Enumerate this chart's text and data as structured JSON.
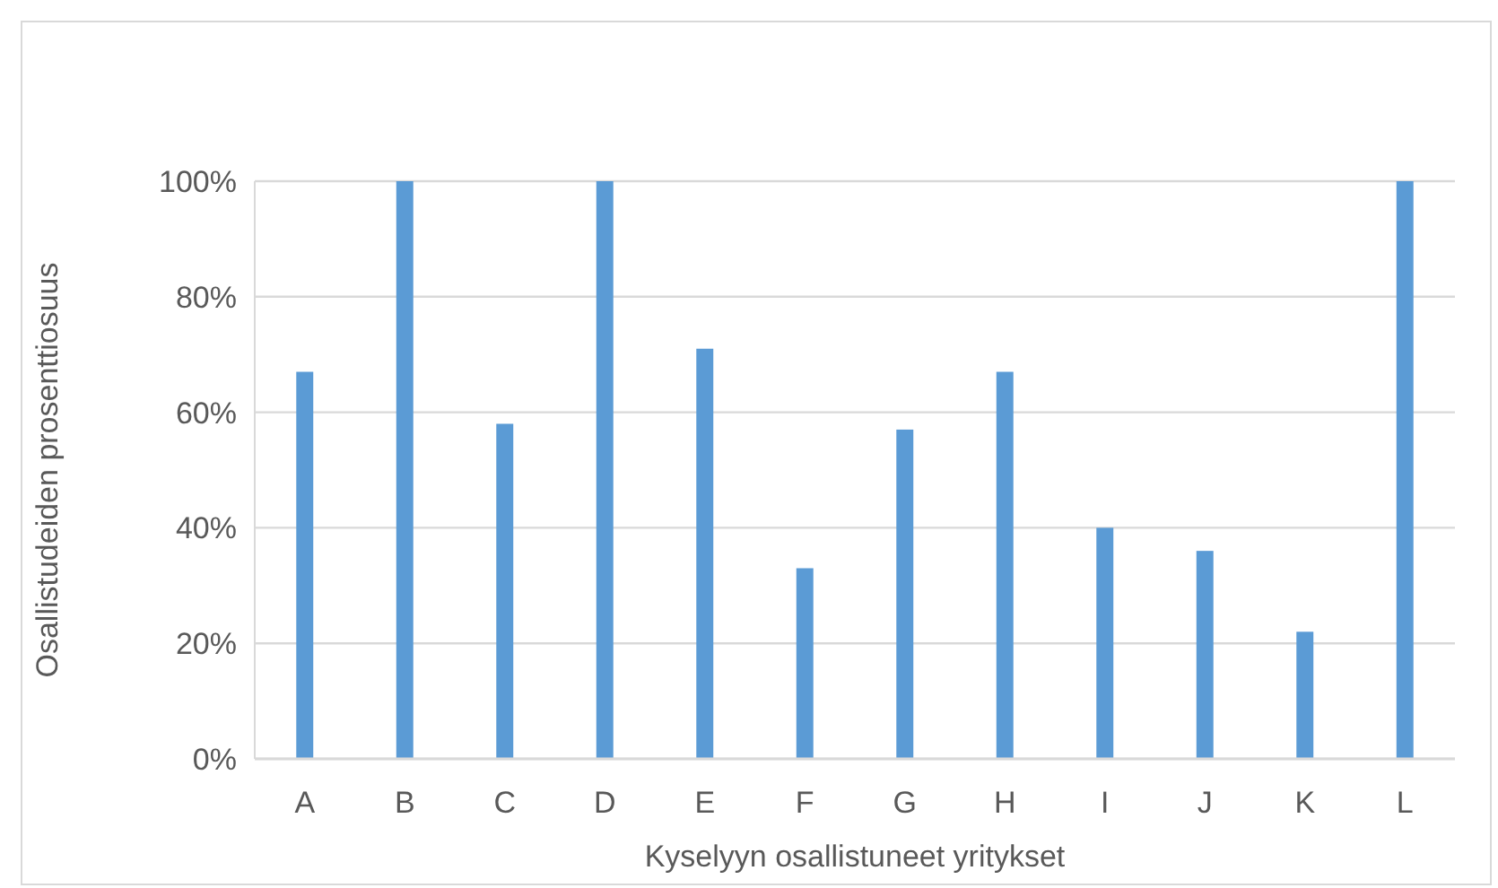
{
  "chart_data": {
    "type": "bar",
    "xlabel": "Kyselyyn osallistuneet yritykset",
    "ylabel": "Osallistudeiden prosenttiosuus",
    "categories": [
      "A",
      "B",
      "C",
      "D",
      "E",
      "F",
      "G",
      "H",
      "I",
      "J",
      "K",
      "L"
    ],
    "values": [
      67,
      100,
      58,
      100,
      71,
      33,
      57,
      67,
      40,
      36,
      22,
      100
    ],
    "color": "#5b9bd5",
    "ylim": [
      0,
      100
    ],
    "yticks": [
      {
        "value": 0,
        "label": "0%"
      },
      {
        "value": 20,
        "label": "20%"
      },
      {
        "value": 40,
        "label": "40%"
      },
      {
        "value": 60,
        "label": "60%"
      },
      {
        "value": 80,
        "label": "80%"
      },
      {
        "value": 100,
        "label": "100%"
      }
    ],
    "grid": "y"
  }
}
